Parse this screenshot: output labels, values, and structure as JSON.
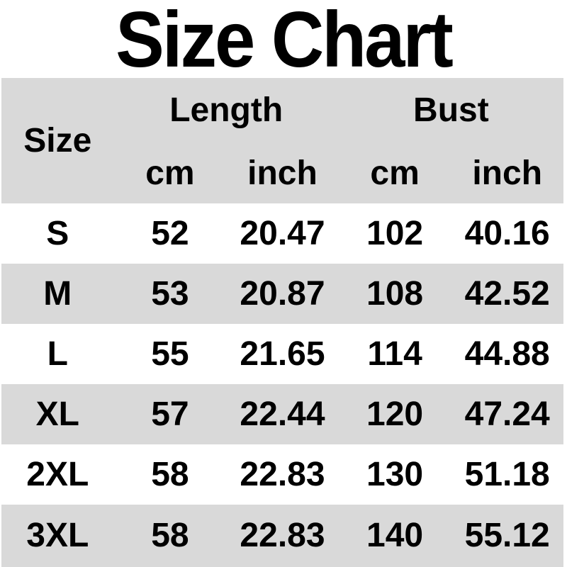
{
  "page": {
    "title": "Size Chart"
  },
  "colors": {
    "header_bg": "#d9d9d9",
    "row_alt_bg": "#d9d9d9",
    "row_bg": "#ffffff",
    "text": "#000000"
  },
  "table": {
    "group_headers": {
      "size": "Size",
      "length": "Length",
      "bust": "Bust"
    },
    "sub_headers": [
      "cm",
      "inch",
      "cm",
      "inch"
    ],
    "rows": [
      [
        "S",
        "52",
        "20.47",
        "102",
        "40.16"
      ],
      [
        "M",
        "53",
        "20.87",
        "108",
        "42.52"
      ],
      [
        "L",
        "55",
        "21.65",
        "114",
        "44.88"
      ],
      [
        "XL",
        "57",
        "22.44",
        "120",
        "47.24"
      ],
      [
        "2XL",
        "58",
        "22.83",
        "130",
        "51.18"
      ],
      [
        "3XL",
        "58",
        "22.83",
        "140",
        "55.12"
      ]
    ]
  },
  "chart_data": {
    "type": "table",
    "title": "Size Chart",
    "columns": [
      "Size",
      "Length cm",
      "Length inch",
      "Bust cm",
      "Bust inch"
    ],
    "rows": [
      [
        "S",
        52,
        20.47,
        102,
        40.16
      ],
      [
        "M",
        53,
        20.87,
        108,
        42.52
      ],
      [
        "L",
        55,
        21.65,
        114,
        44.88
      ],
      [
        "XL",
        57,
        22.44,
        120,
        47.24
      ],
      [
        "2XL",
        58,
        22.83,
        130,
        51.18
      ],
      [
        "3XL",
        58,
        22.83,
        140,
        55.12
      ]
    ],
    "layout": {
      "header_bg": "#d9d9d9",
      "alternating_rows": true,
      "grid": false
    }
  }
}
